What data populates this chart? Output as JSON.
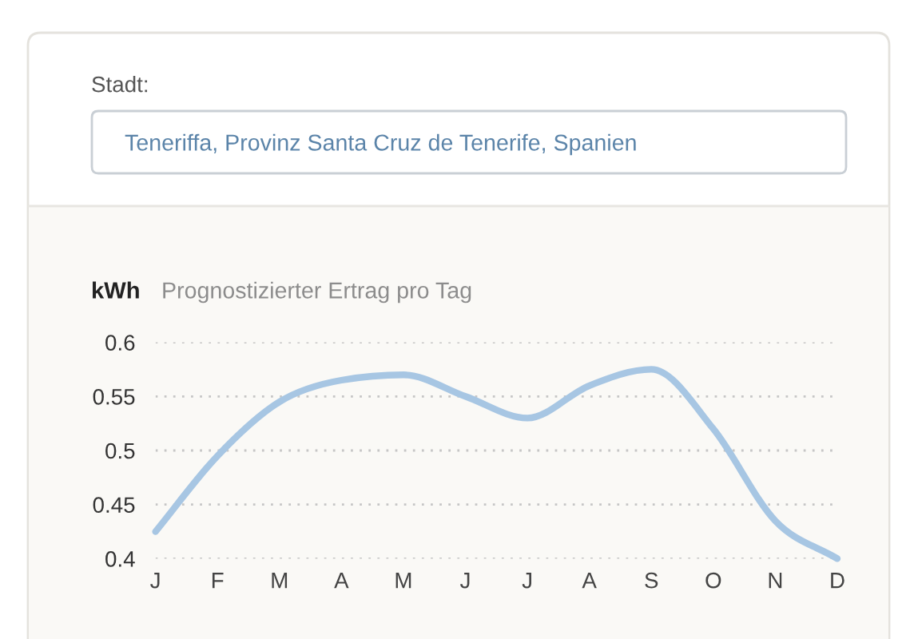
{
  "chart_data": {
    "type": "line",
    "title": "Prognostizierter Ertrag pro Tag",
    "ylabel": "kWh",
    "annotations": [
      "Stadt:",
      "Teneriffa, Provinz Santa Cruz de Tenerife, Spanien"
    ],
    "categories": [
      "J",
      "F",
      "M",
      "A",
      "M",
      "J",
      "J",
      "A",
      "S",
      "O",
      "N",
      "D"
    ],
    "values": [
      0.425,
      0.495,
      0.545,
      0.565,
      0.57,
      0.55,
      0.53,
      0.56,
      0.575,
      0.52,
      0.435,
      0.4
    ],
    "color": "#a7c6e3",
    "ylim": [
      0.4,
      0.6
    ],
    "yticks": [
      0.4,
      0.45,
      0.5,
      0.55,
      0.6
    ],
    "grid": "y",
    "line_style": "solid"
  }
}
